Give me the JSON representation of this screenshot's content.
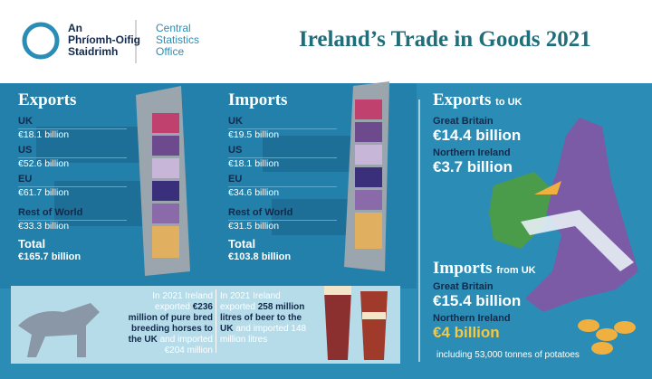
{
  "header": {
    "org_irish": [
      "An",
      "Phríomh-Oifig",
      "Staidrimh"
    ],
    "org_english": [
      "Central",
      "Statistics",
      "Office"
    ],
    "title": "Ireland’s Trade in Goods 2021"
  },
  "exports": {
    "heading": "Exports",
    "rows": [
      {
        "label": "UK",
        "value": "€18.1 billion"
      },
      {
        "label": "US",
        "value": "€52.6 billion"
      },
      {
        "label": "EU",
        "value": "€61.7 billion"
      },
      {
        "label": "Rest of World",
        "value": "€33.3 billion"
      }
    ],
    "total": {
      "label": "Total",
      "value": "€165.7 billion"
    }
  },
  "imports": {
    "heading": "Imports",
    "rows": [
      {
        "label": "UK",
        "value": "€19.5 billion"
      },
      {
        "label": "US",
        "value": "€18.1 billion"
      },
      {
        "label": "EU",
        "value": "€34.6 billion"
      },
      {
        "label": "Rest of World",
        "value": "€31.5 billion"
      }
    ],
    "total": {
      "label": "Total",
      "value": "€103.8 billion"
    }
  },
  "uk_trade": {
    "exports": {
      "heading": "Exports",
      "suffix": "to UK",
      "items": [
        {
          "label": "Great Britain",
          "value": "€14.4 billion"
        },
        {
          "label": "Northern Ireland",
          "value": "€3.7 billion"
        }
      ]
    },
    "imports": {
      "heading": "Imports",
      "suffix": "from UK",
      "items": [
        {
          "label": "Great Britain",
          "value": "€15.4 billion"
        },
        {
          "label": "Northern Ireland",
          "value": "€4 billion"
        }
      ]
    },
    "note": "including 53,000 tonnes of potatoes"
  },
  "facts": {
    "horses": [
      "In 2021 Ireland exported ",
      "€236 million of pure bred breeding horses to the UK",
      " and imported €204 million"
    ],
    "beer": [
      "In 2021 Ireland exported ",
      "258 million litres of beer to the UK",
      " and imported 148 million litres"
    ]
  }
}
